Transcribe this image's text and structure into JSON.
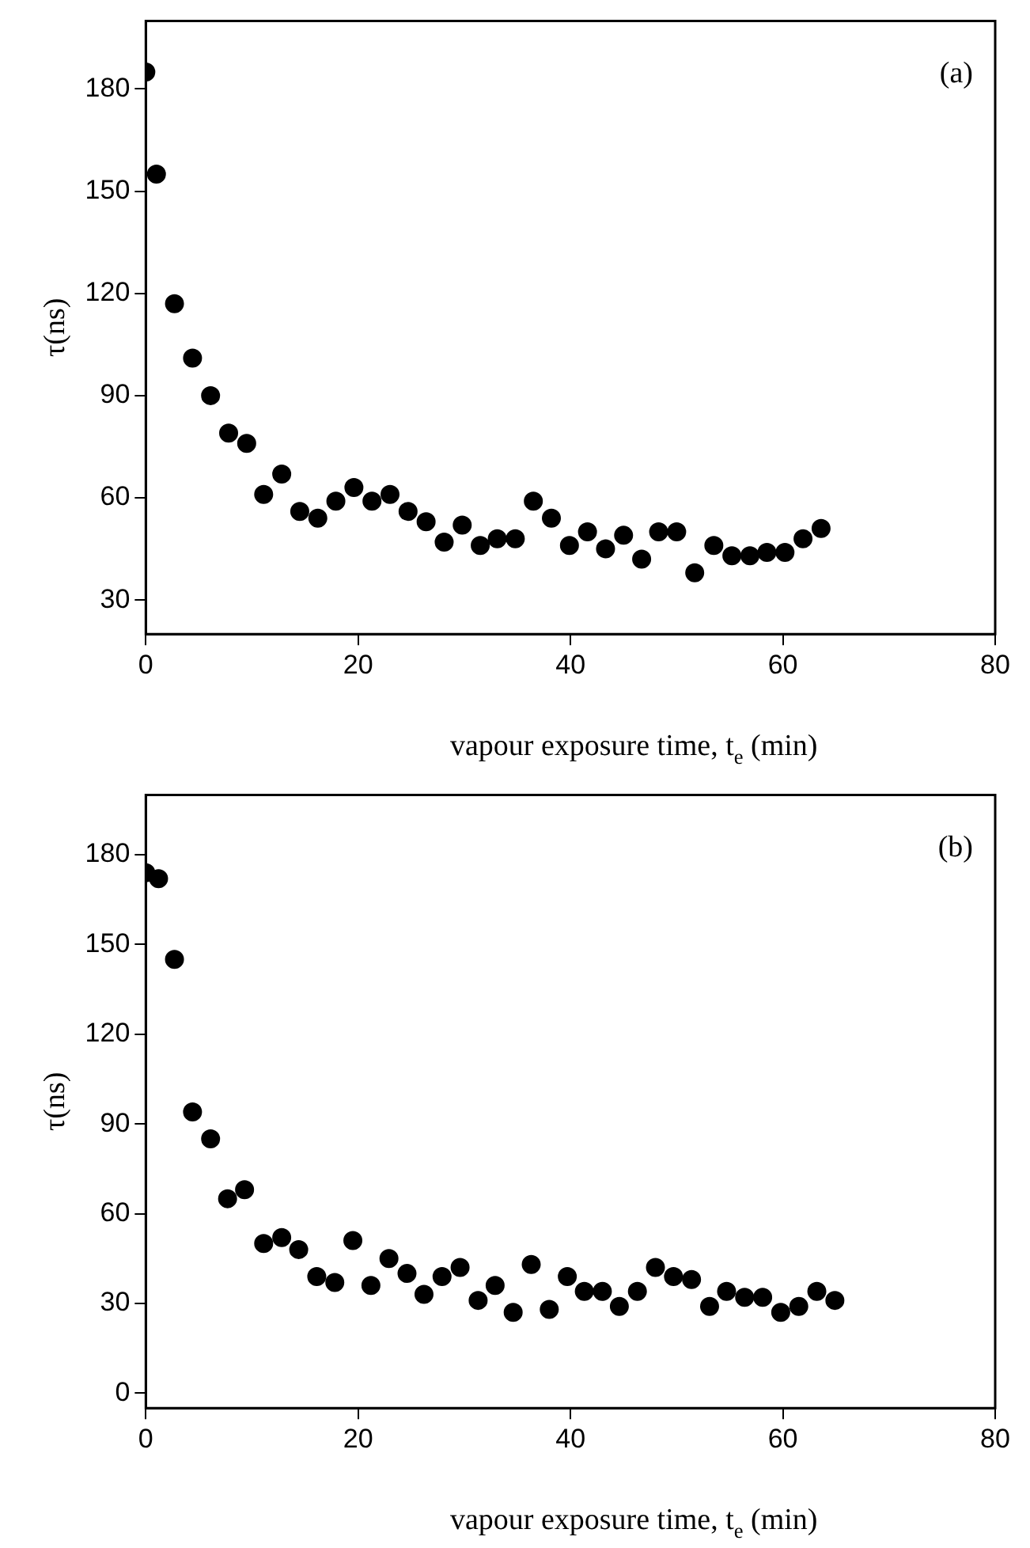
{
  "chart_data": [
    {
      "type": "scatter",
      "xlabel": "vapour exposure time, t$_{e}$ (min)",
      "ylabel": "τ(ns)",
      "annotations": [
        "(a)"
      ],
      "marker": "circle",
      "grid": false,
      "legend": false,
      "x": [
        0,
        1.0,
        2.7,
        4.4,
        6.1,
        7.8,
        9.5,
        11.1,
        12.8,
        14.5,
        16.2,
        17.9,
        19.6,
        21.3,
        23.0,
        24.7,
        26.4,
        28.1,
        29.8,
        31.5,
        33.1,
        34.8,
        36.5,
        38.2,
        39.9,
        41.6,
        43.3,
        45.0,
        46.7,
        48.3,
        50.0,
        51.7,
        53.5,
        55.2,
        56.9,
        58.5,
        60.2,
        61.9,
        63.6
      ],
      "series": [
        {
          "color": "#000000",
          "values": [
            185,
            155,
            117,
            101,
            90,
            79,
            76,
            61,
            67,
            56,
            54,
            59,
            63,
            59,
            61,
            56,
            53,
            47,
            52,
            46,
            48,
            48,
            59,
            54,
            46,
            50,
            45,
            49,
            42,
            50,
            50,
            38,
            46,
            43,
            43,
            44,
            44,
            48,
            51
          ]
        }
      ],
      "xlim": [
        0,
        80
      ],
      "xticks": [
        0,
        20,
        40,
        60,
        80
      ],
      "ylim": [
        20,
        200
      ],
      "yticks": [
        30,
        60,
        90,
        120,
        150,
        180
      ]
    },
    {
      "type": "scatter",
      "xlabel": "vapour exposure time, t$_{e}$ (min)",
      "ylabel": "τ(ns)",
      "annotations": [
        "(b)"
      ],
      "marker": "circle",
      "grid": false,
      "legend": false,
      "x": [
        0,
        1.2,
        2.7,
        4.4,
        6.1,
        7.7,
        9.3,
        11.1,
        12.8,
        14.4,
        16.1,
        17.8,
        19.5,
        21.2,
        22.9,
        24.6,
        26.2,
        27.9,
        29.6,
        31.3,
        32.9,
        34.6,
        36.3,
        38.0,
        39.7,
        41.3,
        43.0,
        44.6,
        46.3,
        48.0,
        49.7,
        51.4,
        53.1,
        54.7,
        56.4,
        58.1,
        59.8,
        61.5,
        63.2,
        64.9
      ],
      "series": [
        {
          "color": "#000000",
          "values": [
            174,
            172,
            145,
            94,
            85,
            65,
            68,
            50,
            52,
            48,
            39,
            37,
            51,
            36,
            45,
            40,
            33,
            39,
            42,
            31,
            36,
            27,
            43,
            28,
            39,
            34,
            34,
            29,
            34,
            42,
            39,
            38,
            29,
            34,
            32,
            32,
            27,
            29,
            34,
            31
          ]
        }
      ],
      "xlim": [
        0,
        80
      ],
      "xticks": [
        0,
        20,
        40,
        60,
        80
      ],
      "ylim": [
        -5,
        200
      ],
      "yticks": [
        0,
        30,
        60,
        90,
        120,
        150,
        180
      ]
    }
  ]
}
